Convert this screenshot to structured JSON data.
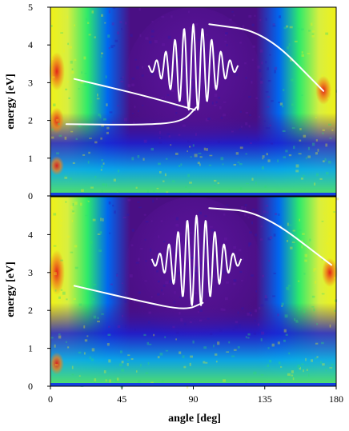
{
  "chart_data": [
    {
      "type": "heatmap",
      "panel": "top",
      "title": "",
      "xlabel": "",
      "ylabel": "energy [eV]",
      "xlim": [
        0,
        180
      ],
      "ylim": [
        0,
        5
      ],
      "x_ticks": [],
      "y_ticks": [
        "0",
        "1",
        "2",
        "3",
        "4",
        "5"
      ],
      "colormap": [
        "#4a0f84",
        "#5a1c9a",
        "#1d1fd0",
        "#0060f0",
        "#00c8e8",
        "#48e060",
        "#d8f040",
        "#f2f020",
        "#f08018",
        "#e01818"
      ],
      "annotations": [
        {
          "name": "arrow-upper",
          "points": [
            [
              100,
              4.55
            ],
            [
              135,
              4.35
            ],
            [
              172,
              2.78
            ]
          ]
        },
        {
          "name": "arrow-lower",
          "points": [
            [
              15,
              3.1
            ],
            [
              60,
              2.65
            ],
            [
              91,
              2.28
            ]
          ]
        },
        {
          "name": "bottom-curve",
          "points": [
            [
              10,
              1.9
            ],
            [
              56,
              1.88
            ],
            [
              83,
              1.95
            ],
            [
              92,
              2.35
            ]
          ]
        }
      ],
      "wave_packet": {
        "center": [
          90,
          3.4
        ],
        "amplitude": 1.15
      }
    },
    {
      "type": "heatmap",
      "panel": "bottom",
      "title": "",
      "xlabel": "angle [deg]",
      "ylabel": "energy [eV]",
      "xlim": [
        0,
        180
      ],
      "ylim": [
        0,
        5
      ],
      "x_ticks": [
        "0",
        "45",
        "90",
        "135",
        "180"
      ],
      "y_ticks": [
        "0",
        "1",
        "2",
        "3",
        "4"
      ],
      "colormap": [
        "#4a0f84",
        "#5a1c9a",
        "#1d1fd0",
        "#0060f0",
        "#00c8e8",
        "#48e060",
        "#d8f040",
        "#f2f020",
        "#f08018",
        "#e01818"
      ],
      "annotations": [
        {
          "name": "arrow-upper",
          "points": [
            [
              100,
              4.7
            ],
            [
              133,
              4.6
            ],
            [
              177,
              3.2
            ]
          ]
        },
        {
          "name": "arrow-lower",
          "points": [
            [
              15,
              2.65
            ],
            [
              56,
              2.25
            ],
            [
              85,
              2.0
            ],
            [
              96,
              2.2
            ]
          ]
        }
      ],
      "wave_packet": {
        "center": [
          92,
          3.3
        ],
        "amplitude": 1.2
      }
    }
  ]
}
